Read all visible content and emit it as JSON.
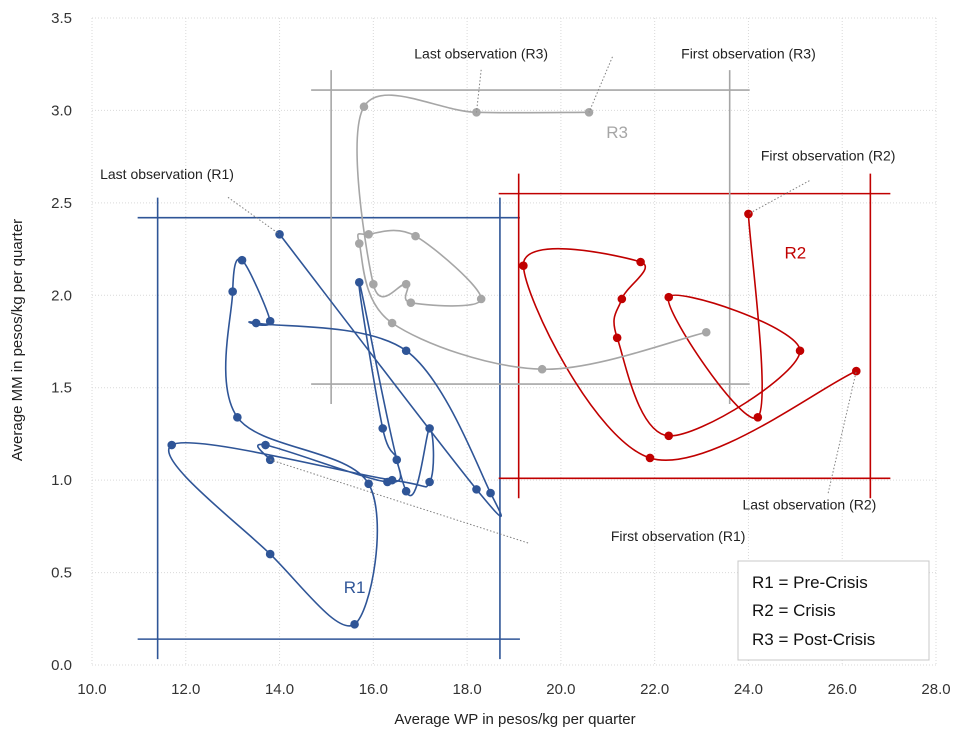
{
  "chart_data": {
    "type": "scatter",
    "title": "",
    "xlabel": "Average WP in pesos/kg per quarter",
    "ylabel": "Average MM in pesos/kg per quarter",
    "xlim": [
      10.0,
      28.0
    ],
    "ylim": [
      0.0,
      3.5
    ],
    "xticks": [
      "10.0",
      "12.0",
      "14.0",
      "16.0",
      "18.0",
      "20.0",
      "22.0",
      "24.0",
      "26.0",
      "28.0"
    ],
    "yticks": [
      "0.0",
      "0.5",
      "1.0",
      "1.5",
      "2.0",
      "2.5",
      "3.0",
      "3.5"
    ],
    "grid": "dotted",
    "series": [
      {
        "name": "R1",
        "color": "#2f5597",
        "points": [
          {
            "x": 13.8,
            "y": 1.11
          },
          {
            "x": 13.7,
            "y": 1.19
          },
          {
            "x": 16.3,
            "y": 0.99
          },
          {
            "x": 16.5,
            "y": 1.11
          },
          {
            "x": 16.2,
            "y": 1.28
          },
          {
            "x": 15.7,
            "y": 2.07
          },
          {
            "x": 16.7,
            "y": 0.94
          },
          {
            "x": 17.2,
            "y": 1.28
          },
          {
            "x": 17.2,
            "y": 0.99
          },
          {
            "x": 16.4,
            "y": 1.0
          },
          {
            "x": 11.7,
            "y": 1.19
          },
          {
            "x": 13.8,
            "y": 0.6
          },
          {
            "x": 15.6,
            "y": 0.22
          },
          {
            "x": 15.9,
            "y": 0.98
          },
          {
            "x": 13.1,
            "y": 1.34
          },
          {
            "x": 13.0,
            "y": 2.02
          },
          {
            "x": 13.2,
            "y": 2.19
          },
          {
            "x": 13.8,
            "y": 1.86
          },
          {
            "x": 13.5,
            "y": 1.85
          },
          {
            "x": 16.7,
            "y": 1.7
          },
          {
            "x": 18.5,
            "y": 0.93
          },
          {
            "x": 18.2,
            "y": 0.95
          },
          {
            "x": 14.0,
            "y": 2.33
          }
        ]
      },
      {
        "name": "R2",
        "color": "#c00000",
        "points": [
          {
            "x": 24.0,
            "y": 2.44
          },
          {
            "x": 24.2,
            "y": 1.34
          },
          {
            "x": 22.3,
            "y": 1.99
          },
          {
            "x": 25.1,
            "y": 1.7
          },
          {
            "x": 22.3,
            "y": 1.24
          },
          {
            "x": 21.2,
            "y": 1.77
          },
          {
            "x": 21.3,
            "y": 1.98
          },
          {
            "x": 21.7,
            "y": 2.18
          },
          {
            "x": 19.2,
            "y": 2.16
          },
          {
            "x": 21.9,
            "y": 1.12
          },
          {
            "x": 26.3,
            "y": 1.59
          }
        ]
      },
      {
        "name": "R3",
        "color": "#a6a6a6",
        "points": [
          {
            "x": 20.6,
            "y": 2.99
          },
          {
            "x": 18.2,
            "y": 2.99
          },
          {
            "x": 15.8,
            "y": 3.02
          },
          {
            "x": 16.0,
            "y": 2.06
          },
          {
            "x": 16.7,
            "y": 2.06
          },
          {
            "x": 16.8,
            "y": 1.96
          },
          {
            "x": 18.3,
            "y": 1.98
          },
          {
            "x": 16.9,
            "y": 2.32
          },
          {
            "x": 15.9,
            "y": 2.33
          },
          {
            "x": 15.7,
            "y": 2.28
          },
          {
            "x": 16.4,
            "y": 1.85
          },
          {
            "x": 19.6,
            "y": 1.6
          },
          {
            "x": 23.1,
            "y": 1.8
          }
        ]
      }
    ],
    "boxes": [
      {
        "name": "R1",
        "label": "R1",
        "x0": 11.4,
        "x1": 18.7,
        "y0": 0.14,
        "y1": 2.42,
        "label_at": [
          15.6,
          0.39
        ]
      },
      {
        "name": "R2",
        "label": "R2",
        "x0": 19.1,
        "x1": 26.6,
        "y0": 1.01,
        "y1": 2.55,
        "label_at": [
          25.0,
          2.2
        ]
      },
      {
        "name": "R3",
        "label": "R3",
        "x0": 15.1,
        "x1": 23.6,
        "y0": 1.52,
        "y1": 3.11,
        "label_at": [
          21.2,
          2.85
        ]
      }
    ],
    "annotations": [
      {
        "text": "Last observation (R3)",
        "text_at": [
          18.3,
          3.28
        ],
        "line_from": [
          18.3,
          3.22
        ],
        "line_to": [
          18.2,
          2.99
        ],
        "color": "#a6a6a6"
      },
      {
        "text": "First observation (R3)",
        "text_at": [
          24.0,
          3.28
        ],
        "line_from": [
          21.1,
          3.29
        ],
        "line_to": [
          20.6,
          2.99
        ],
        "color": "#a6a6a6"
      },
      {
        "text": "First observation (R2)",
        "text_at": [
          25.7,
          2.73
        ],
        "line_from": [
          25.3,
          2.62
        ],
        "line_to": [
          24.0,
          2.44
        ],
        "color": "#2f5597"
      },
      {
        "text": "Last observation (R1)",
        "text_at": [
          11.6,
          2.63
        ],
        "line_from": [
          12.9,
          2.53
        ],
        "line_to": [
          14.0,
          2.33
        ],
        "color": "#2f5597"
      },
      {
        "text": "First observation (R1)",
        "text_at": [
          22.5,
          0.67
        ],
        "line_from": [
          19.3,
          0.66
        ],
        "line_to": [
          13.8,
          1.11
        ],
        "color": "#2f5597"
      },
      {
        "text": "Last observation (R2)",
        "text_at": [
          25.3,
          0.84
        ],
        "line_from": [
          25.7,
          0.93
        ],
        "line_to": [
          26.3,
          1.59
        ],
        "color": "#c00000"
      }
    ],
    "legend": {
      "position": "bottom-right",
      "items": [
        "R1 = Pre-Crisis",
        "R2 = Crisis",
        "R3 = Post-Crisis"
      ]
    }
  }
}
